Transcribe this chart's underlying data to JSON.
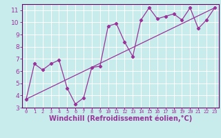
{
  "title": "",
  "xlabel": "Windchill (Refroidissement éolien,°C)",
  "ylabel": "",
  "bg_color": "#c8ecec",
  "line_color": "#993399",
  "grid_color": "#ffffff",
  "spine_color": "#660066",
  "xlim": [
    -0.5,
    23.5
  ],
  "ylim": [
    3,
    11.5
  ],
  "yticks": [
    3,
    4,
    5,
    6,
    7,
    8,
    9,
    10,
    11
  ],
  "xticks": [
    0,
    1,
    2,
    3,
    4,
    5,
    6,
    7,
    8,
    9,
    10,
    11,
    12,
    13,
    14,
    15,
    16,
    17,
    18,
    19,
    20,
    21,
    22,
    23
  ],
  "scatter_x": [
    0,
    1,
    2,
    3,
    4,
    5,
    6,
    7,
    8,
    9,
    10,
    11,
    12,
    13,
    14,
    15,
    16,
    17,
    18,
    19,
    20,
    21,
    22,
    23
  ],
  "scatter_y": [
    3.7,
    6.6,
    6.1,
    6.6,
    6.9,
    4.6,
    3.3,
    3.8,
    6.3,
    6.4,
    9.7,
    9.9,
    8.4,
    7.2,
    10.2,
    11.2,
    10.3,
    10.5,
    10.7,
    10.2,
    11.2,
    9.5,
    10.2,
    11.2
  ],
  "trend_x": [
    0,
    23
  ],
  "trend_y": [
    3.7,
    11.2
  ],
  "xlabel_fontsize": 7,
  "tick_fontsize": 6.5,
  "xtick_fontsize": 5.0
}
